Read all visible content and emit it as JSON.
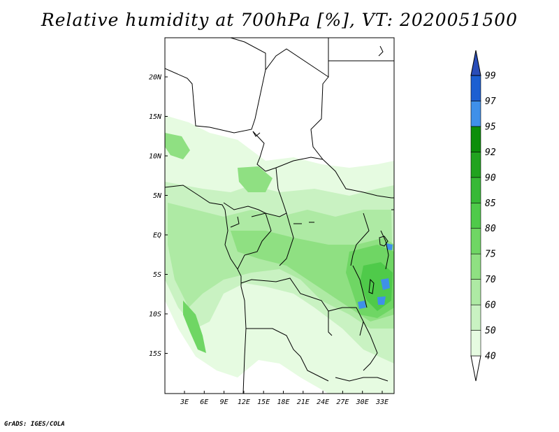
{
  "title": "Relative humidity at 700hPa [%], VT: 2020051500",
  "credit": "GrADS: IGES/COLA",
  "map": {
    "lat_ticks": [
      "20N",
      "15N",
      "10N",
      "5N",
      "EQ",
      "5S",
      "10S",
      "15S"
    ],
    "lon_ticks": [
      "3E",
      "6E",
      "9E",
      "12E",
      "15E",
      "18E",
      "21E",
      "24E",
      "27E",
      "30E",
      "33E"
    ]
  },
  "colorbar": {
    "levels": [
      "40",
      "50",
      "60",
      "70",
      "75",
      "80",
      "85",
      "90",
      "92",
      "95",
      "97",
      "99"
    ],
    "colors": [
      "#ffffff",
      "#e6fbe1",
      "#c9f2c2",
      "#aeeaa4",
      "#8fe082",
      "#6fd664",
      "#4fca4a",
      "#37b936",
      "#21a31f",
      "#0c8e0a",
      "#3f90e9",
      "#1c5fd1",
      "#2a4db8"
    ]
  }
}
